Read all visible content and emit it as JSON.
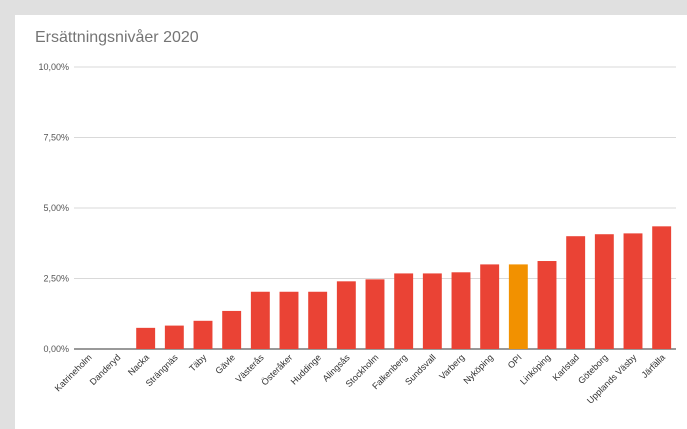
{
  "chart_data": {
    "type": "bar",
    "title": "Ersättningsnivåer 2020",
    "xlabel": "",
    "ylabel": "",
    "ylim": [
      0,
      10
    ],
    "y_ticks": [
      "0,00%",
      "2,50%",
      "5,00%",
      "7,50%",
      "10,00%"
    ],
    "y_tick_values": [
      0,
      2.5,
      5,
      7.5,
      10
    ],
    "grid": true,
    "legend": "none",
    "categories": [
      "Katrineholm",
      "Danderyd",
      "Nacka",
      "Strängnäs",
      "Täby",
      "Gävle",
      "Västerås",
      "Österåker",
      "Huddinge",
      "Alingsås",
      "Stockholm",
      "Falkenberg",
      "Sundsvall",
      "Varberg",
      "Nyköping",
      "OPI",
      "Linköping",
      "Karlstad",
      "Göteborg",
      "Upplands Väsby",
      "Järfälla"
    ],
    "values": [
      0,
      0,
      0.75,
      0.83,
      1.0,
      1.35,
      2.03,
      2.03,
      2.03,
      2.4,
      2.47,
      2.68,
      2.68,
      2.72,
      3.0,
      3.0,
      3.12,
      4.0,
      4.07,
      4.1,
      4.35
    ],
    "highlight_category": "OPI",
    "colors": {
      "bar": "#ea4335",
      "highlight": "#f29100",
      "grid": "#cccccc",
      "axis": "#333333"
    }
  }
}
